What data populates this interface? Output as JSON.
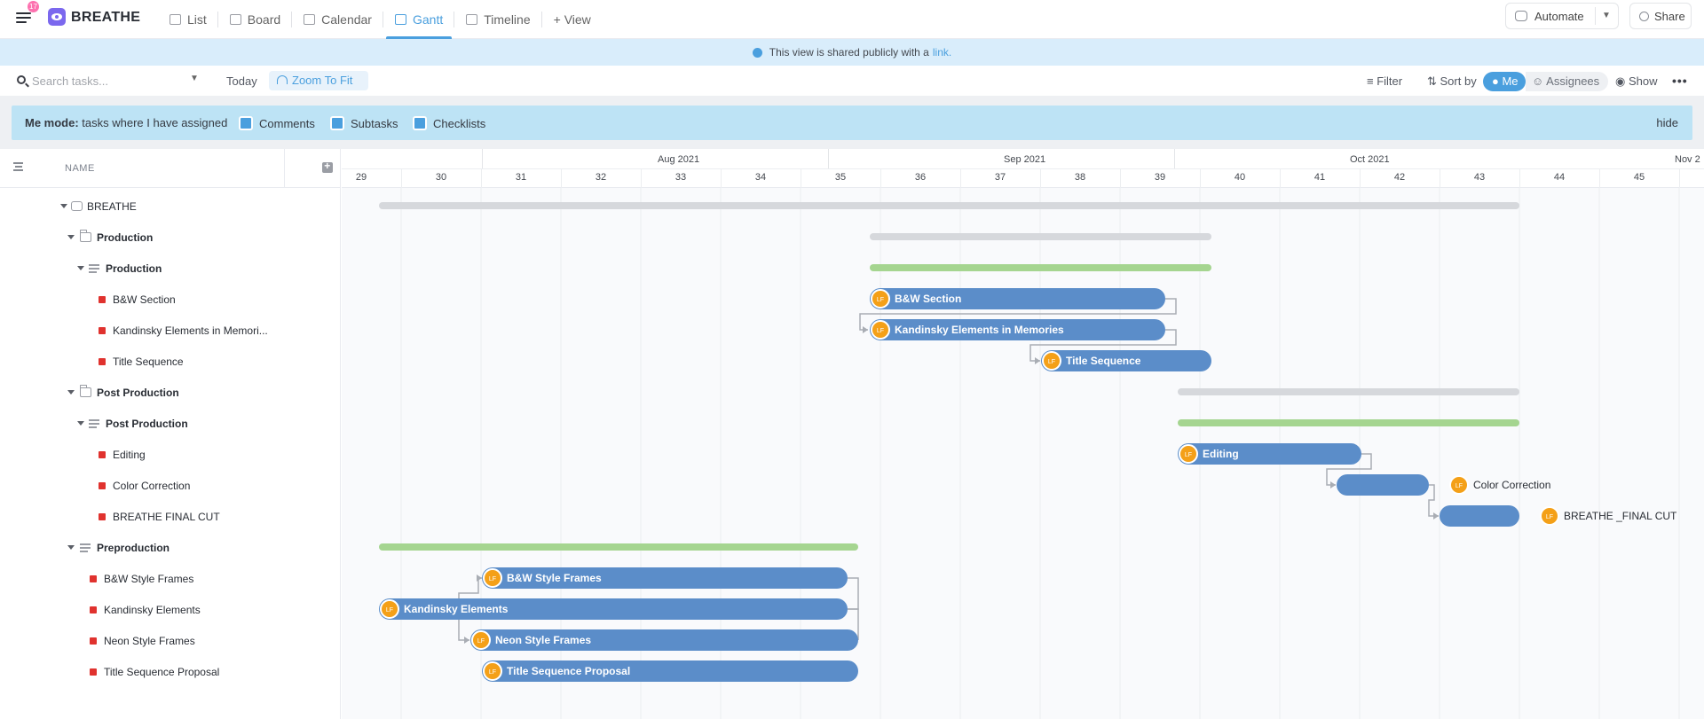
{
  "topbar": {
    "notification_count": "17",
    "space_name": "BREATHE",
    "tabs": [
      {
        "label": "List",
        "icon": "list-icon"
      },
      {
        "label": "Board",
        "icon": "board-icon"
      },
      {
        "label": "Calendar",
        "icon": "calendar-icon"
      },
      {
        "label": "Gantt",
        "icon": "gantt-icon",
        "active": true
      },
      {
        "label": "Timeline",
        "icon": "timeline-icon"
      }
    ],
    "add_view_label": "+ View",
    "automate_label": "Automate",
    "share_label": "Share"
  },
  "banner": {
    "text": "This view is shared publicly with a",
    "link": "link."
  },
  "toolbar": {
    "search_placeholder": "Search tasks...",
    "today_label": "Today",
    "zoom_label": "Zoom To Fit",
    "filter_label": "Filter",
    "sort_label": "Sort by",
    "me_label": "Me",
    "assignees_label": "Assignees",
    "show_label": "Show"
  },
  "memode": {
    "title": "Me mode:",
    "desc": "tasks where I have assigned",
    "options": [
      "Comments",
      "Subtasks",
      "Checklists"
    ],
    "hide_label": "hide"
  },
  "list": {
    "header": "NAME",
    "rows": [
      {
        "label": "BREATHE",
        "level": 0,
        "kind": "space",
        "bold": false
      },
      {
        "label": "Production",
        "level": 1,
        "kind": "folder",
        "bold": true
      },
      {
        "label": "Production",
        "level": 2,
        "kind": "list",
        "bold": true
      },
      {
        "label": "B&W Section",
        "level": 3,
        "kind": "task"
      },
      {
        "label": "Kandinsky Elements in Memori...",
        "level": 3,
        "kind": "task"
      },
      {
        "label": "Title Sequence",
        "level": 3,
        "kind": "task"
      },
      {
        "label": "Post Production",
        "level": 1,
        "kind": "folder",
        "bold": true
      },
      {
        "label": "Post Production",
        "level": 2,
        "kind": "list",
        "bold": true
      },
      {
        "label": "Editing",
        "level": 3,
        "kind": "task"
      },
      {
        "label": "Color Correction",
        "level": 3,
        "kind": "task"
      },
      {
        "label": "BREATHE   FINAL CUT",
        "level": 3,
        "kind": "task"
      },
      {
        "label": "Preproduction",
        "level": 1,
        "kind": "list",
        "bold": true
      },
      {
        "label": "B&W Style Frames",
        "level": 2,
        "kind": "task"
      },
      {
        "label": "Kandinsky Elements",
        "level": 2,
        "kind": "task"
      },
      {
        "label": "Neon Style Frames",
        "level": 2,
        "kind": "task"
      },
      {
        "label": "Title Sequence Proposal",
        "level": 2,
        "kind": "task"
      }
    ]
  },
  "gantt": {
    "months": [
      "Aug 2021",
      "Sep 2021",
      "Oct 2021",
      "Nov 2"
    ],
    "weeks": [
      "29",
      "30",
      "31",
      "32",
      "33",
      "34",
      "35",
      "36",
      "37",
      "38",
      "39",
      "40",
      "41",
      "42",
      "43",
      "44",
      "45"
    ],
    "avatar_initials": "LF",
    "task_bar_color": "#5b8dc9",
    "summary_bar_color": "#d6d8dc",
    "list_bar_color": "#a5d590",
    "avatar_color": "#f4a018",
    "task_labels": {
      "bw_section": "B&W Section",
      "kandinsky_memories": "Kandinsky Elements in Memories",
      "title_sequence": "Title Sequence",
      "editing": "Editing",
      "color_correction": "Color Correction",
      "final_cut": "BREATHE _FINAL CUT",
      "bw_style_frames": "B&W Style Frames",
      "kandinsky_elements": "Kandinsky Elements",
      "neon_style_frames": "Neon Style Frames",
      "title_sequence_proposal": "Title Sequence Proposal"
    }
  }
}
